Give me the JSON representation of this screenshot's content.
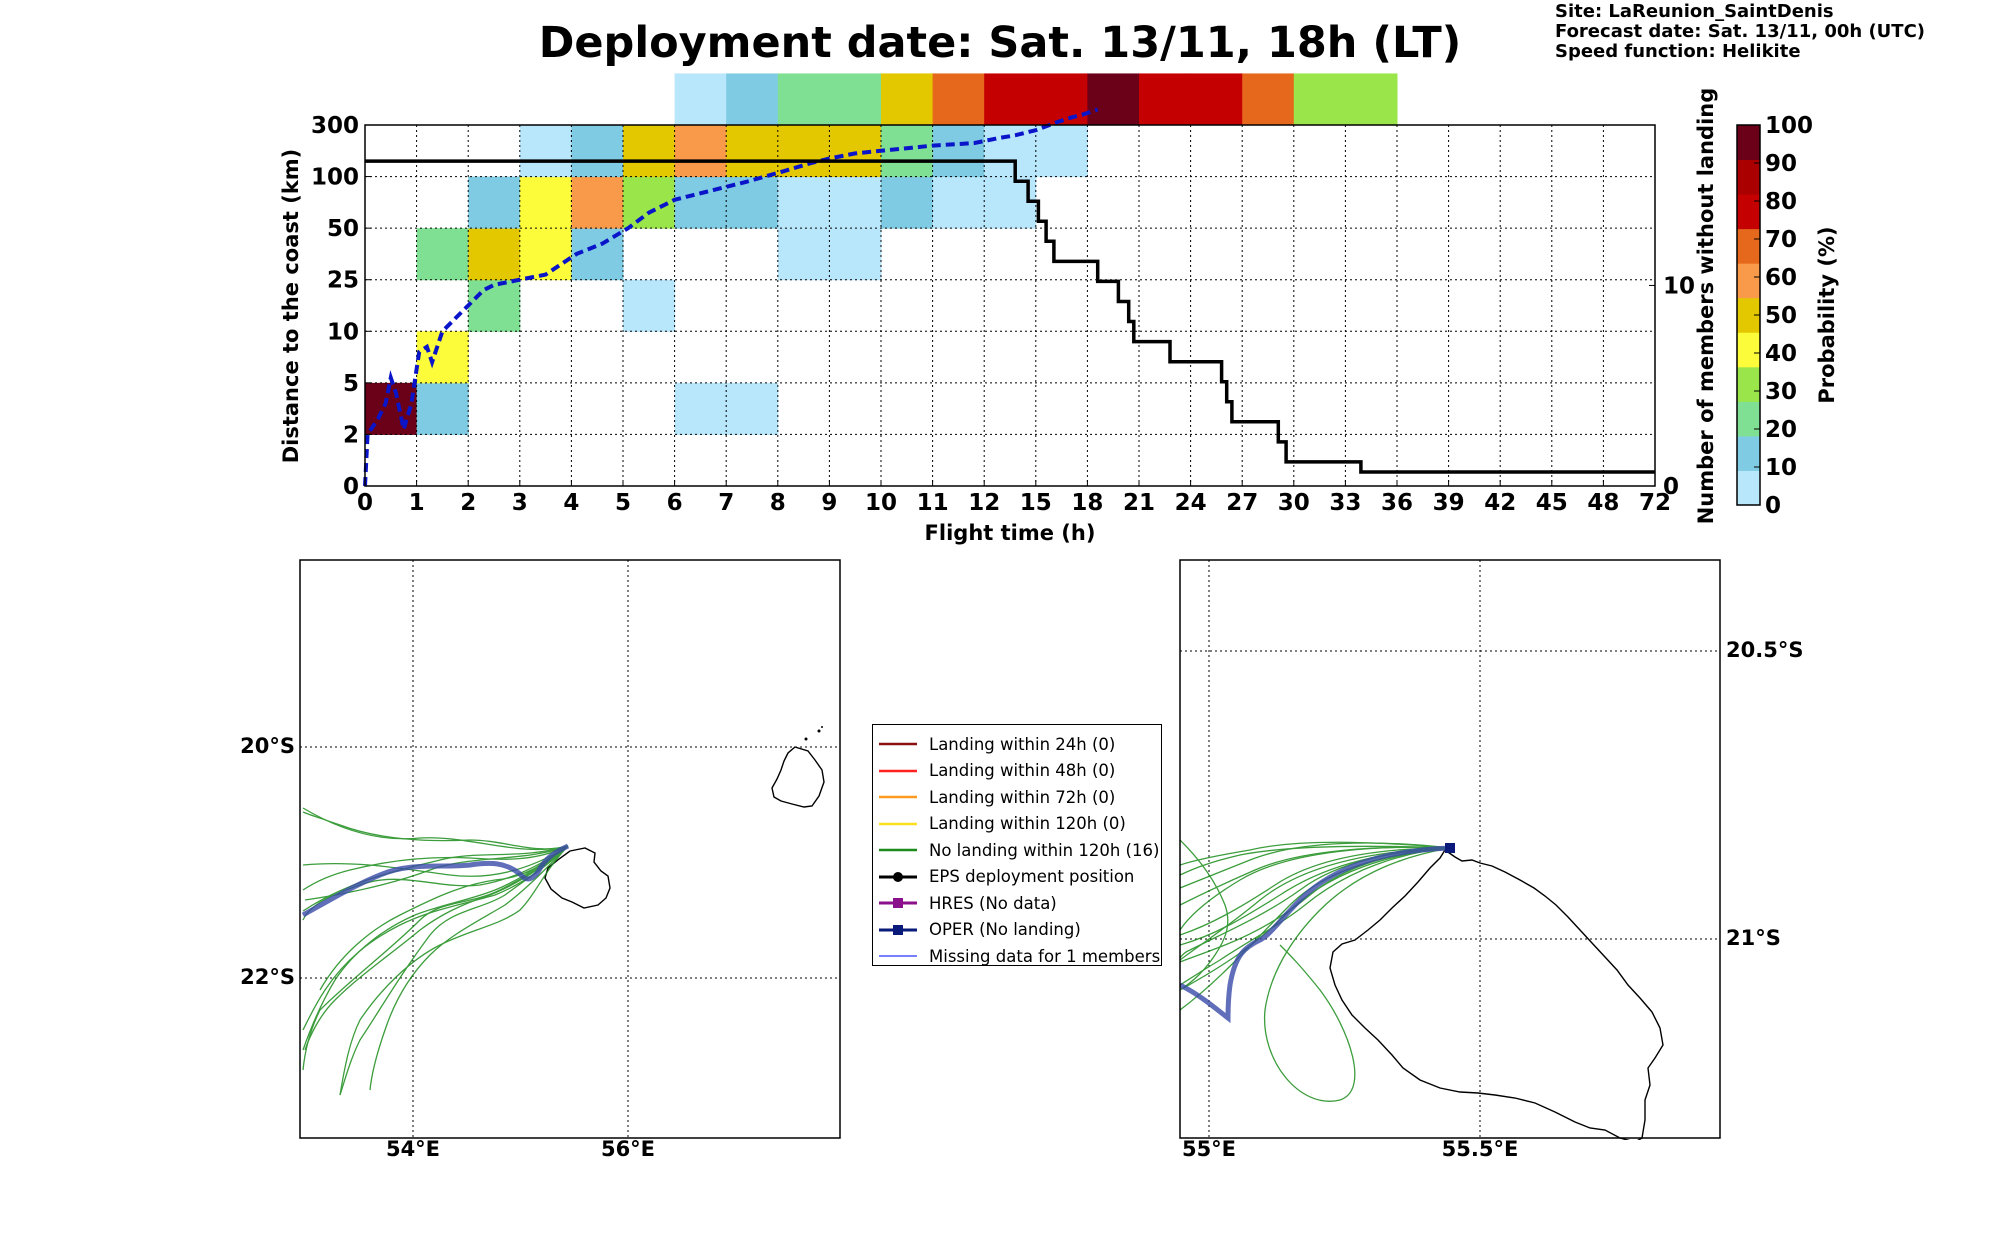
{
  "header": {
    "title": "Deployment date: Sat. 13/11, 18h (LT)",
    "site": "Site: LaReunion_SaintDenis",
    "forecast": "Forecast date: Sat. 13/11, 00h (UTC)",
    "speed": "Speed function: Helikite"
  },
  "chart_data": [
    {
      "type": "heatmap",
      "xlabel": "Flight time (h)",
      "ylabel": "Distance to the coast (km)",
      "y2label": "Number of members without landing",
      "x_ticks": [
        "0",
        "1",
        "2",
        "3",
        "4",
        "5",
        "6",
        "7",
        "8",
        "9",
        "10",
        "11",
        "12",
        "15",
        "18",
        "21",
        "24",
        "27",
        "30",
        "33",
        "36",
        "39",
        "42",
        "45",
        "48",
        "72"
      ],
      "y_ticks": [
        "0",
        "2",
        "5",
        "10",
        "25",
        "50",
        "100",
        "300"
      ],
      "y2_ticks": [
        "0",
        "10"
      ],
      "y2_range": [
        0,
        18
      ],
      "colorbar": {
        "label": "Probability (%)",
        "ticks": [
          "0",
          "10",
          "20",
          "30",
          "40",
          "50",
          "60",
          "70",
          "80",
          "90",
          "100"
        ],
        "colors": [
          "#b8e6fb",
          "#7fcbe3",
          "#7fe094",
          "#9ae64a",
          "#fcfc3a",
          "#e3c800",
          "#f99a4a",
          "#e6681c",
          "#c40000",
          "#ab0000",
          "#6b0019"
        ]
      },
      "cells": [
        {
          "x": 0,
          "y": 1,
          "p": 100
        },
        {
          "x": 1,
          "y": 1,
          "p": 10
        },
        {
          "x": 1,
          "y": 2,
          "p": 40
        },
        {
          "x": 1,
          "y": 4,
          "p": 20
        },
        {
          "x": 2,
          "y": 3,
          "p": 20
        },
        {
          "x": 2,
          "y": 4,
          "p": 50
        },
        {
          "x": 2,
          "y": 5,
          "p": 10
        },
        {
          "x": 3,
          "y": 4,
          "p": 40
        },
        {
          "x": 3,
          "y": 5,
          "p": 40
        },
        {
          "x": 3,
          "y": 6,
          "p": 0
        },
        {
          "x": 4,
          "y": 4,
          "p": 10
        },
        {
          "x": 4,
          "y": 5,
          "p": 60
        },
        {
          "x": 4,
          "y": 6,
          "p": 10
        },
        {
          "x": 5,
          "y": 3,
          "p": 0
        },
        {
          "x": 5,
          "y": 5,
          "p": 30
        },
        {
          "x": 5,
          "y": 6,
          "p": 50
        },
        {
          "x": 6,
          "y": 1,
          "p": 0
        },
        {
          "x": 6,
          "y": 5,
          "p": 10
        },
        {
          "x": 6,
          "y": 6,
          "p": 60
        },
        {
          "x": 6,
          "y": 7,
          "p": 0
        },
        {
          "x": 7,
          "y": 1,
          "p": 0
        },
        {
          "x": 7,
          "y": 5,
          "p": 10
        },
        {
          "x": 7,
          "y": 6,
          "p": 50
        },
        {
          "x": 7,
          "y": 7,
          "p": 10
        },
        {
          "x": 8,
          "y": 4,
          "p": 0
        },
        {
          "x": 8,
          "y": 5,
          "p": 0
        },
        {
          "x": 8,
          "y": 6,
          "p": 50
        },
        {
          "x": 8,
          "y": 7,
          "p": 20
        },
        {
          "x": 9,
          "y": 4,
          "p": 0
        },
        {
          "x": 9,
          "y": 5,
          "p": 0
        },
        {
          "x": 9,
          "y": 6,
          "p": 50
        },
        {
          "x": 9,
          "y": 7,
          "p": 20
        },
        {
          "x": 10,
          "y": 5,
          "p": 10
        },
        {
          "x": 10,
          "y": 6,
          "p": 20
        },
        {
          "x": 10,
          "y": 7,
          "p": 50
        },
        {
          "x": 11,
          "y": 5,
          "p": 0
        },
        {
          "x": 11,
          "y": 6,
          "p": 10
        },
        {
          "x": 11,
          "y": 7,
          "p": 70
        },
        {
          "x": 12,
          "y": 5,
          "p": 0
        },
        {
          "x": 12,
          "y": 6,
          "p": 0
        },
        {
          "x": 12,
          "y": 7,
          "p": 80
        },
        {
          "x": 13,
          "y": 6,
          "p": 0
        },
        {
          "x": 13,
          "y": 7,
          "p": 80
        },
        {
          "x": 14,
          "y": 7,
          "p": 100
        },
        {
          "x": 15,
          "y": 7,
          "p": 80
        },
        {
          "x": 16,
          "y": 7,
          "p": 80
        },
        {
          "x": 17,
          "y": 7,
          "p": 70
        },
        {
          "x": 18,
          "y": 7,
          "p": 30
        },
        {
          "x": 19,
          "y": 7,
          "p": 30
        }
      ],
      "median_distance_dashed": {
        "color": "#0a14c8",
        "points": [
          [
            0,
            0
          ],
          [
            0.05,
            1.0
          ],
          [
            0.25,
            1.3
          ],
          [
            0.4,
            1.6
          ],
          [
            0.5,
            2.1
          ],
          [
            0.6,
            1.8
          ],
          [
            0.75,
            1.1
          ],
          [
            0.9,
            1.6
          ],
          [
            1.05,
            2.6
          ],
          [
            1.2,
            2.7
          ],
          [
            1.3,
            2.4
          ],
          [
            1.5,
            3.0
          ],
          [
            1.9,
            3.4
          ],
          [
            2.1,
            3.6
          ],
          [
            2.3,
            3.8
          ],
          [
            2.5,
            3.9
          ],
          [
            3.0,
            4.0
          ],
          [
            3.5,
            4.1
          ],
          [
            3.8,
            4.3
          ],
          [
            4.1,
            4.5
          ],
          [
            4.6,
            4.7
          ],
          [
            5.1,
            5.0
          ],
          [
            5.5,
            5.3
          ],
          [
            6.0,
            5.55
          ],
          [
            6.6,
            5.7
          ],
          [
            7.4,
            5.9
          ],
          [
            8.1,
            6.1
          ],
          [
            8.6,
            6.25
          ],
          [
            9.0,
            6.35
          ],
          [
            9.5,
            6.45
          ],
          [
            10,
            6.5
          ],
          [
            10.5,
            6.55
          ],
          [
            11,
            6.6
          ],
          [
            11.8,
            6.65
          ],
          [
            12.3,
            6.75
          ],
          [
            12.6,
            6.8
          ],
          [
            13.0,
            6.9
          ],
          [
            13.4,
            7.05
          ],
          [
            13.7,
            7.15
          ],
          [
            13.9,
            7.2
          ],
          [
            14.2,
            7.3
          ]
        ]
      },
      "members_without_landing": {
        "color": "#000000",
        "points": [
          [
            0,
            16.2
          ],
          [
            12.6,
            16.2
          ],
          [
            12.6,
            15.2
          ],
          [
            12.85,
            15.2
          ],
          [
            12.85,
            14.2
          ],
          [
            13.05,
            14.2
          ],
          [
            13.05,
            13.2
          ],
          [
            13.2,
            13.2
          ],
          [
            13.2,
            12.2
          ],
          [
            13.35,
            12.2
          ],
          [
            13.35,
            11.2
          ],
          [
            14.2,
            11.2
          ],
          [
            14.2,
            10.2
          ],
          [
            14.6,
            10.2
          ],
          [
            14.6,
            9.2
          ],
          [
            14.8,
            9.2
          ],
          [
            14.8,
            8.2
          ],
          [
            14.9,
            8.2
          ],
          [
            14.9,
            7.2
          ],
          [
            15.6,
            7.2
          ],
          [
            15.6,
            6.2
          ],
          [
            16.6,
            6.2
          ],
          [
            16.6,
            5.2
          ],
          [
            16.7,
            5.2
          ],
          [
            16.7,
            4.2
          ],
          [
            16.8,
            4.2
          ],
          [
            16.8,
            3.2
          ],
          [
            17.7,
            3.2
          ],
          [
            17.7,
            2.2
          ],
          [
            17.85,
            2.2
          ],
          [
            17.85,
            1.2
          ],
          [
            19.3,
            1.2
          ],
          [
            19.3,
            0.7
          ],
          [
            25,
            0.7
          ]
        ]
      }
    },
    {
      "type": "map",
      "x_ticks": [
        "54°E",
        "56°E"
      ],
      "y_ticks": [
        "20°S",
        "22°S"
      ],
      "lon_range": [
        53.0,
        58.0
      ],
      "lat_range": [
        -23.4,
        -18.4
      ]
    },
    {
      "type": "map",
      "x_ticks": [
        "55°E",
        "55.5°E"
      ],
      "y_ticks": [
        "20.5°S",
        "21°S"
      ],
      "lon_range": [
        54.95,
        55.95
      ],
      "lat_range": [
        -21.35,
        -20.35
      ]
    }
  ],
  "legend": [
    {
      "label": "Landing within 24h (0)",
      "color": "#8b1010",
      "symbol": "line",
      "name": "legend-item-landing-24h"
    },
    {
      "label": "Landing within 48h (0)",
      "color": "#ff2020",
      "symbol": "line",
      "name": "legend-item-landing-48h"
    },
    {
      "label": "Landing within 72h (0)",
      "color": "#ff9a20",
      "symbol": "line",
      "name": "legend-item-landing-72h"
    },
    {
      "label": "Landing within 120h (0)",
      "color": "#ffe020",
      "symbol": "line",
      "name": "legend-item-landing-120h"
    },
    {
      "label": "No landing within 120h (16)",
      "color": "#1b8c1b",
      "symbol": "line",
      "name": "legend-item-no-landing"
    },
    {
      "label": "EPS deployment position",
      "color": "#000000",
      "symbol": "dot",
      "name": "legend-item-eps-deployment"
    },
    {
      "label": "HRES (No data)",
      "color": "#8b108b",
      "symbol": "square",
      "name": "legend-item-hres"
    },
    {
      "label": "OPER (No landing)",
      "color": "#0a1a7a",
      "symbol": "square",
      "name": "legend-item-oper"
    },
    {
      "label": "Missing data for 1 members",
      "color": "#4a55ff",
      "symbol": "thin",
      "name": "legend-item-missing-data"
    }
  ]
}
